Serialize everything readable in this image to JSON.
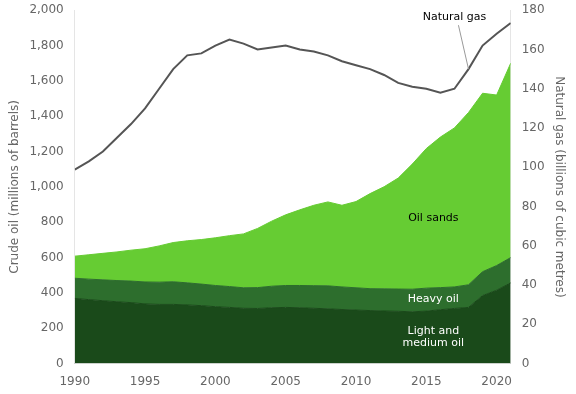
{
  "chart_data": {
    "type": "area",
    "stacked": true,
    "grid": false,
    "x": [
      1990,
      1991,
      1992,
      1993,
      1994,
      1995,
      1996,
      1997,
      1998,
      1999,
      2000,
      2001,
      2002,
      2003,
      2004,
      2005,
      2006,
      2007,
      2008,
      2009,
      2010,
      2011,
      2012,
      2013,
      2014,
      2015,
      2016,
      2017,
      2018,
      2019,
      2020,
      2021
    ],
    "xlim": [
      1990,
      2021
    ],
    "xticks": [
      1990,
      1995,
      2000,
      2005,
      2010,
      2015,
      2020
    ],
    "ylabel": "Crude oil (millions of barrels)",
    "y2label": "Natural gas (billions of cubic metres)",
    "ylim": [
      0,
      2000
    ],
    "yticks": [
      0,
      200,
      400,
      600,
      800,
      {
        "value": 1000,
        "label": "1,000"
      },
      {
        "value": 1200,
        "label": "1,200"
      },
      {
        "value": 1400,
        "label": "1,400"
      },
      {
        "value": 1600,
        "label": "1,600"
      },
      {
        "value": 1800,
        "label": "1,800"
      },
      {
        "value": 2000,
        "label": "2,000"
      }
    ],
    "y2lim": [
      0,
      180
    ],
    "y2ticks": [
      0,
      20,
      40,
      60,
      80,
      100,
      120,
      140,
      160,
      180
    ],
    "series": [
      {
        "name": "Light and\nmedium oil",
        "color": "#1a4a1a",
        "values": [
          369,
          362,
          356,
          350,
          345,
          338,
          335,
          335,
          332,
          328,
          322,
          318,
          313,
          312,
          316,
          318,
          316,
          313,
          310,
          306,
          303,
          300,
          298,
          296,
          293,
          297,
          305,
          312,
          318,
          385,
          415,
          457
        ]
      },
      {
        "name": "Heavy oil",
        "color": "#2d6e2d",
        "values": [
          114,
          116,
          118,
          120,
          122,
          124,
          126,
          128,
          125,
          122,
          120,
          118,
          116,
          118,
          122,
          124,
          126,
          128,
          130,
          128,
          126,
          124,
          125,
          126,
          128,
          130,
          125,
          122,
          128,
          135,
          140,
          143
        ]
      },
      {
        "name": "Oil sands",
        "color": "#66cc33",
        "values": [
          125,
          138,
          150,
          162,
          175,
          188,
          205,
          222,
          238,
          252,
          270,
          288,
          305,
          335,
          368,
          400,
          428,
          455,
          475,
          462,
          488,
          538,
          578,
          628,
          708,
          790,
          852,
          900,
          975,
          1010,
          965,
          1100
        ]
      },
      {
        "name": "Natural gas",
        "type": "line",
        "axis": "y2",
        "color": "#555555",
        "values": [
          98.8,
          103,
          108,
          115,
          122,
          130,
          140,
          150,
          157,
          158,
          162,
          165,
          163,
          160,
          161,
          162,
          160,
          159,
          157,
          154,
          152,
          150,
          147,
          143,
          141,
          140,
          138,
          140,
          150,
          162,
          168,
          173.5
        ]
      }
    ]
  }
}
